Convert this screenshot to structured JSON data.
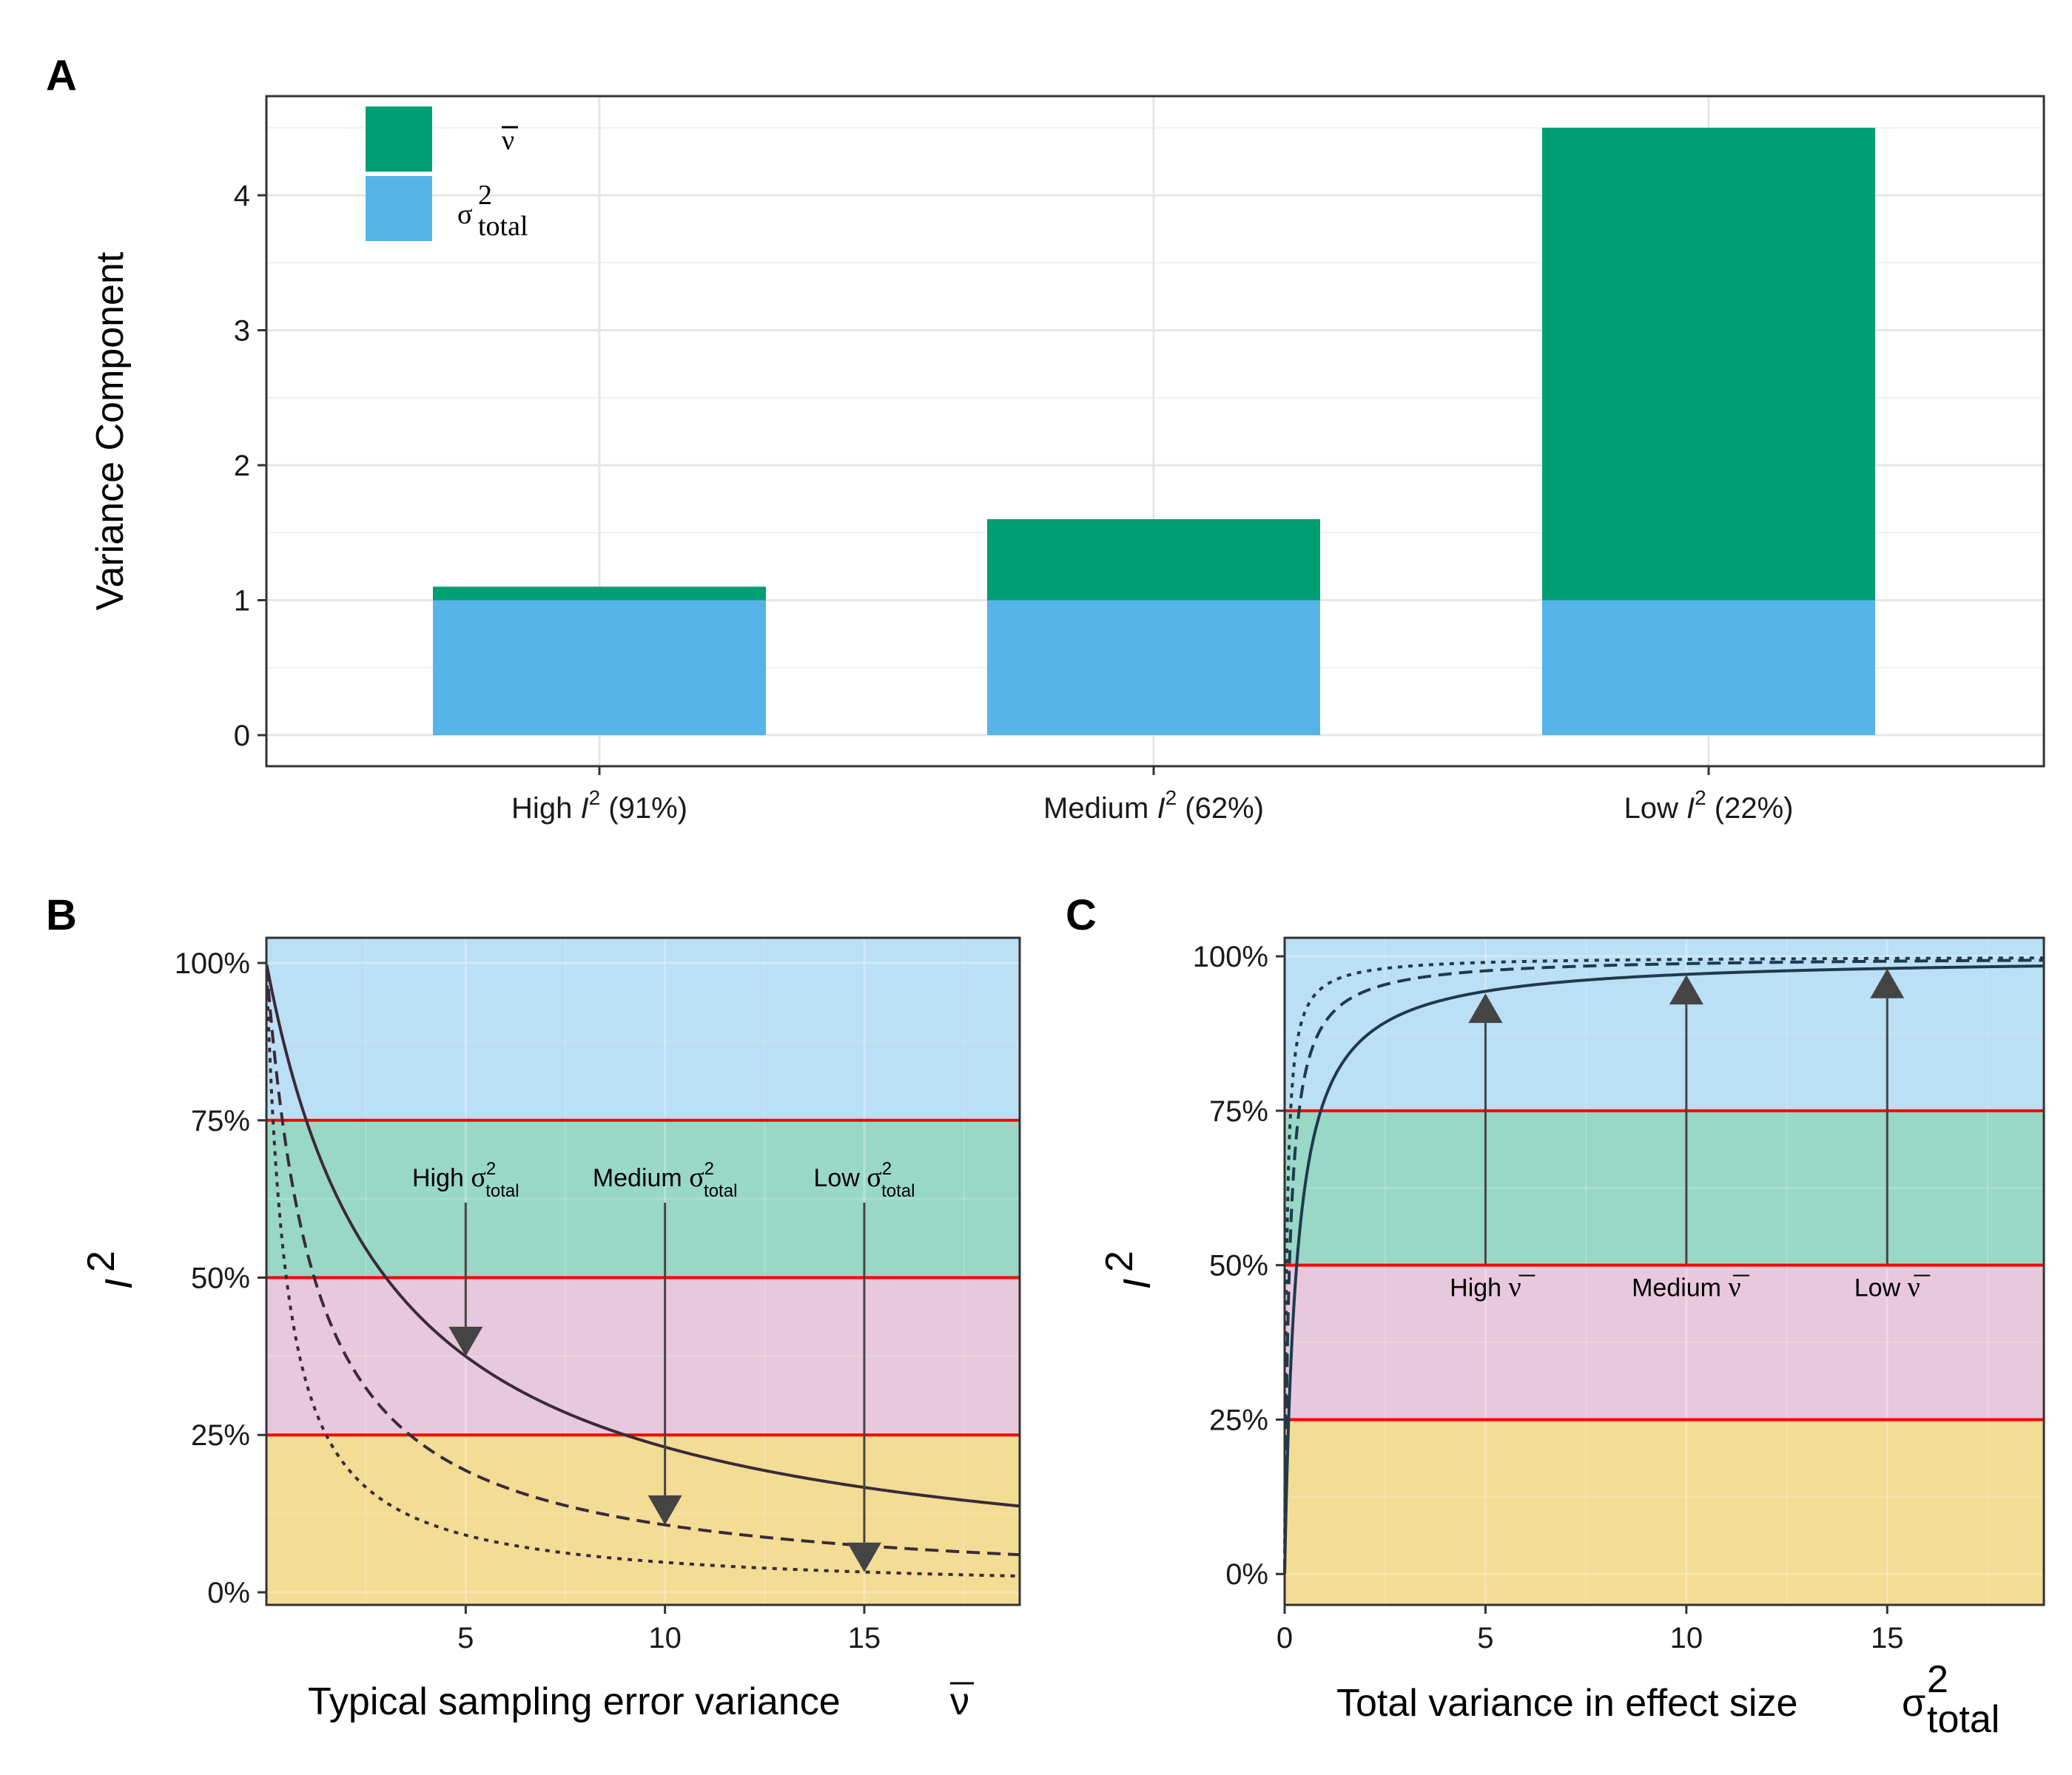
{
  "figure": {
    "panel_labels": [
      "A",
      "B",
      "C"
    ]
  },
  "colors": {
    "sampling_variance": "#009E73",
    "total_variance": "#56B4E9",
    "band_high": "#BBDFF4",
    "band_medium": "#99D8C7",
    "band_low": "#E8C8DC",
    "band_none": "#F3DC94",
    "threshold_line": "#FF0000",
    "arrow": "#444444"
  },
  "chart_data": [
    {
      "panel": "A",
      "type": "bar",
      "stacked": true,
      "ylabel": "Variance Component",
      "xlabel": "",
      "ylim": [
        0,
        4.72
      ],
      "yticks": [
        "0",
        "1",
        "2",
        "3",
        "4"
      ],
      "categories": [
        {
          "prefix": "High ",
          "var": "I",
          "sup": "2",
          "suffix": " (91%)"
        },
        {
          "prefix": "Medium ",
          "var": "I",
          "sup": "2",
          "suffix": " (62%)"
        },
        {
          "prefix": "Low ",
          "var": "I",
          "sup": "2",
          "suffix": " (22%)"
        }
      ],
      "series": [
        {
          "name": "σ²total",
          "legend_main": "σ",
          "legend_sup": "2",
          "legend_sub": "total",
          "values": [
            1.0,
            1.0,
            1.0
          ]
        },
        {
          "name": "v̄",
          "legend_main": "ν",
          "values": [
            0.1,
            0.6,
            3.5
          ]
        }
      ],
      "legend_placement": "top-left",
      "grid": true
    },
    {
      "panel": "B",
      "type": "line",
      "xlabel": "Typical sampling error variance",
      "xlabel_symbol": "ν",
      "ylabel_var": "I",
      "ylabel_sup": "2",
      "xlim": [
        0,
        18.9
      ],
      "ylim": [
        -0.02,
        1.04
      ],
      "xticks": [
        "5",
        "10",
        "15"
      ],
      "yticks": [
        "0%",
        "25%",
        "50%",
        "75%",
        "100%"
      ],
      "bands": [
        0.25,
        0.5,
        0.75
      ],
      "series": [
        {
          "sigma2_total": 3,
          "style": "solid",
          "x_min": 0.01,
          "x_max": 18.9
        },
        {
          "sigma2_total": 1.2,
          "style": "dashed",
          "x_min": 0.01,
          "x_max": 18.9
        },
        {
          "sigma2_total": 0.5,
          "style": "dotted",
          "x_min": 0.01,
          "x_max": 18.9
        }
      ],
      "annotations": [
        {
          "prefix": "High ",
          "x": 5,
          "value": 0.375,
          "label_y": 0.645
        },
        {
          "prefix": "Medium ",
          "x": 10,
          "value": 0.107,
          "label_y": 0.645
        },
        {
          "prefix": "Low ",
          "x": 15,
          "value": 0.032,
          "label_y": 0.645
        }
      ],
      "annotation_main": "σ",
      "annotation_sup": "2",
      "annotation_sub": "total"
    },
    {
      "panel": "C",
      "type": "line",
      "xlabel": "Total variance in effect size",
      "xlabel_main": "σ",
      "xlabel_sup": "2",
      "xlabel_sub": "total",
      "ylabel_var": "I",
      "ylabel_sup": "2",
      "xlim": [
        0,
        18.9
      ],
      "ylim": [
        -0.05,
        1.03
      ],
      "xticks": [
        "0",
        "5",
        "10",
        "15"
      ],
      "yticks": [
        "0%",
        "25%",
        "50%",
        "75%",
        "100%"
      ],
      "bands": [
        0.25,
        0.5,
        0.75
      ],
      "series": [
        {
          "v_bar": 0.3,
          "style": "solid",
          "x_min": 0.0,
          "x_max": 18.9
        },
        {
          "v_bar": 0.12,
          "style": "dashed",
          "x_min": 0.0,
          "x_max": 18.9
        },
        {
          "v_bar": 0.05,
          "style": "dotted",
          "x_min": 0.0,
          "x_max": 18.9
        }
      ],
      "annotations": [
        {
          "prefix": "High ",
          "x": 5,
          "value": 0.94,
          "label_y": 0.5
        },
        {
          "prefix": "Medium ",
          "x": 10,
          "value": 0.97,
          "label_y": 0.5
        },
        {
          "prefix": "Low ",
          "x": 15,
          "value": 0.98,
          "label_y": 0.5
        }
      ],
      "annotation_main": "ν"
    }
  ]
}
